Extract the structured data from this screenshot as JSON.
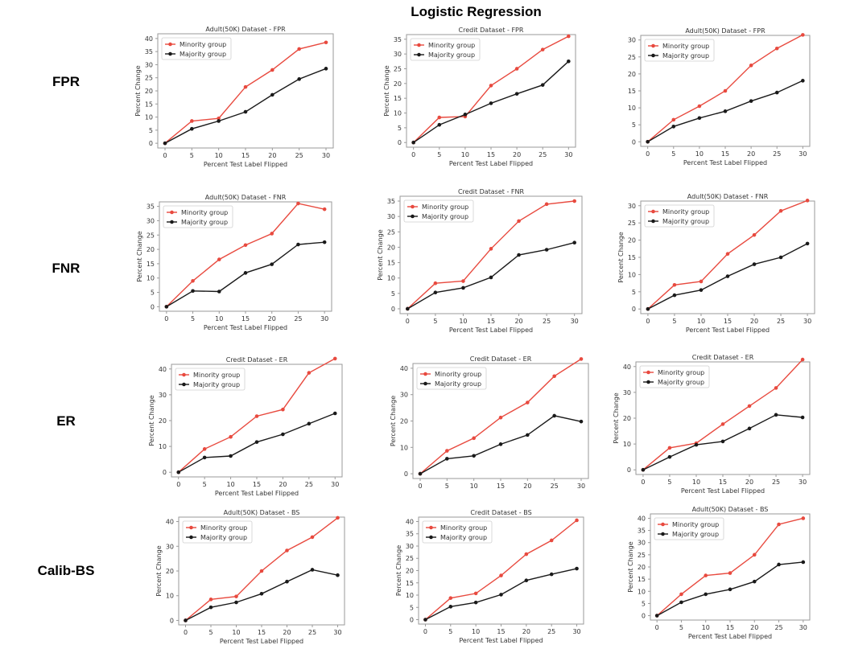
{
  "figure": {
    "title": "Logistic Regression",
    "row_labels": [
      "FPR",
      "FNR",
      "ER",
      "Calib-BS"
    ],
    "colors": {
      "minority": "#e84a3f",
      "majority": "#1a1a1a"
    }
  },
  "chart_data": [
    {
      "type": "line",
      "title": "Adult(50K) Dataset - FPR",
      "xlabel": "Percent Test Label Flipped",
      "ylabel": "Percent Change",
      "x": [
        0,
        5,
        10,
        15,
        20,
        25,
        30
      ],
      "ylim": [
        0,
        40
      ],
      "yticks": [
        0,
        5,
        10,
        15,
        20,
        25,
        30,
        35,
        40
      ],
      "legend": "top-left",
      "series": [
        {
          "name": "Minority group",
          "values": [
            0,
            8.5,
            9.5,
            21.5,
            28,
            36,
            38.5
          ]
        },
        {
          "name": "Majority group",
          "values": [
            0,
            5.5,
            8.5,
            12,
            18.5,
            24.5,
            28.5
          ]
        }
      ]
    },
    {
      "type": "line",
      "title": "Credit Dataset - FPR",
      "xlabel": "Percent Test Label Flipped",
      "ylabel": "Percent Change",
      "x": [
        0,
        5,
        10,
        15,
        20,
        25,
        30
      ],
      "ylim": [
        0,
        35
      ],
      "yticks": [
        0,
        5,
        10,
        15,
        20,
        25,
        30,
        35
      ],
      "legend": "top-left",
      "series": [
        {
          "name": "Minority group",
          "values": [
            0,
            8.5,
            8.8,
            19.3,
            25,
            31.5,
            36
          ]
        },
        {
          "name": "Majority group",
          "values": [
            0,
            6,
            9.5,
            13.3,
            16.5,
            19.5,
            27.5
          ]
        }
      ]
    },
    {
      "type": "line",
      "title": "Adult(50K) Dataset - FPR",
      "xlabel": "Percent Test Label Flipped",
      "ylabel": "",
      "x": [
        0,
        5,
        10,
        15,
        20,
        25,
        30
      ],
      "ylim": [
        0,
        30
      ],
      "yticks": [
        0,
        5,
        10,
        15,
        20,
        25,
        30
      ],
      "legend": "top-left",
      "series": [
        {
          "name": "Minority group",
          "values": [
            0,
            6.5,
            10.5,
            15,
            22.5,
            27.5,
            31.5
          ]
        },
        {
          "name": "Majority group",
          "values": [
            0,
            4.5,
            7,
            9,
            12,
            14.5,
            18
          ]
        }
      ]
    },
    {
      "type": "line",
      "title": "Adult(50K) Dataset - FNR",
      "xlabel": "Percent Test Label Flipped",
      "ylabel": "Percent Change",
      "x": [
        0,
        5,
        10,
        15,
        20,
        25,
        30
      ],
      "ylim": [
        0,
        35
      ],
      "yticks": [
        0,
        5,
        10,
        15,
        20,
        25,
        30,
        35
      ],
      "legend": "top-left",
      "series": [
        {
          "name": "Minority group",
          "values": [
            0,
            9,
            16.5,
            21.5,
            25.5,
            36,
            34
          ]
        },
        {
          "name": "Majority group",
          "values": [
            0,
            5.5,
            5.3,
            11.8,
            14.8,
            21.7,
            22.5
          ]
        }
      ]
    },
    {
      "type": "line",
      "title": "Credit Dataset - FNR",
      "xlabel": "Percent Test Label Flipped",
      "ylabel": "Percent Change",
      "x": [
        0,
        5,
        10,
        15,
        20,
        25,
        30
      ],
      "ylim": [
        0,
        35
      ],
      "yticks": [
        0,
        5,
        10,
        15,
        20,
        25,
        30,
        35
      ],
      "legend": "top-left",
      "series": [
        {
          "name": "Minority group",
          "values": [
            0,
            8.3,
            9,
            19.5,
            28.5,
            34,
            35
          ]
        },
        {
          "name": "Majority group",
          "values": [
            0,
            5.3,
            6.8,
            10.2,
            17.5,
            19.2,
            21.5
          ]
        }
      ]
    },
    {
      "type": "line",
      "title": "Adult(50K) Dataset - FNR",
      "xlabel": "Percent Test Label Flipped",
      "ylabel": "Percent Change",
      "x": [
        0,
        5,
        10,
        15,
        20,
        25,
        30
      ],
      "ylim": [
        0,
        30
      ],
      "yticks": [
        0,
        5,
        10,
        15,
        20,
        25,
        30
      ],
      "legend": "top-left",
      "series": [
        {
          "name": "Minority group",
          "values": [
            0,
            7,
            8,
            16,
            21.5,
            28.5,
            31.5
          ]
        },
        {
          "name": "Majority group",
          "values": [
            0,
            4,
            5.5,
            9.5,
            13,
            15,
            19
          ]
        }
      ]
    },
    {
      "type": "line",
      "title": "Credit Dataset - ER",
      "xlabel": "Percent Test Label Flipped",
      "ylabel": "Percent Change",
      "x": [
        0,
        5,
        10,
        15,
        20,
        25,
        30
      ],
      "ylim": [
        0,
        40
      ],
      "yticks": [
        0,
        10,
        20,
        30,
        40
      ],
      "legend": "top-left",
      "series": [
        {
          "name": "Minority group",
          "values": [
            0,
            9,
            13.7,
            21.7,
            24.3,
            38.5,
            44
          ]
        },
        {
          "name": "Majority group",
          "values": [
            0,
            5.7,
            6.3,
            11.7,
            14.7,
            18.8,
            22.8
          ]
        }
      ]
    },
    {
      "type": "line",
      "title": "Credit Dataset - ER",
      "xlabel": "",
      "ylabel": "Percent Change",
      "x": [
        0,
        5,
        10,
        15,
        20,
        25,
        30
      ],
      "ylim": [
        0,
        40
      ],
      "yticks": [
        0,
        10,
        20,
        30,
        40
      ],
      "legend": "top-left",
      "series": [
        {
          "name": "Minority group",
          "values": [
            0,
            8.7,
            13.5,
            21.3,
            27,
            37,
            43.5
          ]
        },
        {
          "name": "Majority group",
          "values": [
            0,
            5.7,
            6.8,
            11.2,
            14.7,
            22,
            19.8
          ]
        }
      ]
    },
    {
      "type": "line",
      "title": "Credit Dataset - ER",
      "xlabel": "Percent Test Label Flipped",
      "ylabel": "Percent Change",
      "x": [
        0,
        5,
        10,
        15,
        20,
        25,
        30
      ],
      "ylim": [
        0,
        40
      ],
      "yticks": [
        0,
        10,
        20,
        30,
        40
      ],
      "legend": "top-left",
      "series": [
        {
          "name": "Minority group",
          "values": [
            0,
            8.5,
            10.3,
            17.7,
            24.7,
            31.7,
            42.7
          ]
        },
        {
          "name": "Majority group",
          "values": [
            0,
            5,
            9.7,
            11,
            16,
            21.3,
            20.3
          ]
        }
      ]
    },
    {
      "type": "line",
      "title": "Adult(50K) Dataset - BS",
      "xlabel": "Percent Test Label Flipped",
      "ylabel": "Percent Change",
      "x": [
        0,
        5,
        10,
        15,
        20,
        25,
        30
      ],
      "ylim": [
        0,
        40
      ],
      "yticks": [
        0,
        10,
        20,
        30,
        40
      ],
      "legend": "top-left",
      "series": [
        {
          "name": "Minority group",
          "values": [
            0,
            8.5,
            9.7,
            20,
            28.3,
            33.7,
            41.5
          ]
        },
        {
          "name": "Majority group",
          "values": [
            0,
            5.3,
            7.3,
            10.8,
            15.7,
            20.5,
            18.3
          ]
        }
      ]
    },
    {
      "type": "line",
      "title": "Credit Dataset - BS",
      "xlabel": "Percent Test Label Flipped",
      "ylabel": "Percent Change",
      "x": [
        0,
        5,
        10,
        15,
        20,
        25,
        30
      ],
      "ylim": [
        0,
        40
      ],
      "yticks": [
        0,
        5,
        10,
        15,
        20,
        25,
        30,
        35,
        40
      ],
      "legend": "top-left",
      "series": [
        {
          "name": "Minority group",
          "values": [
            0,
            8.8,
            10.7,
            18,
            26.7,
            32.3,
            40.5
          ]
        },
        {
          "name": "Majority group",
          "values": [
            0,
            5.3,
            7,
            10.2,
            16,
            18.5,
            20.8
          ]
        }
      ]
    },
    {
      "type": "line",
      "title": "Adult(50K) Dataset - BS",
      "xlabel": "Percent Test Label Flipped",
      "ylabel": "Percent Change",
      "x": [
        0,
        5,
        10,
        15,
        20,
        25,
        30
      ],
      "ylim": [
        0,
        40
      ],
      "yticks": [
        0,
        5,
        10,
        15,
        20,
        25,
        30,
        35,
        40
      ],
      "legend": "top-left",
      "series": [
        {
          "name": "Minority group",
          "values": [
            0,
            8.8,
            16.5,
            17.5,
            25,
            37.5,
            40
          ]
        },
        {
          "name": "Majority group",
          "values": [
            0,
            5.5,
            8.8,
            10.8,
            14,
            21,
            22
          ]
        }
      ]
    }
  ]
}
